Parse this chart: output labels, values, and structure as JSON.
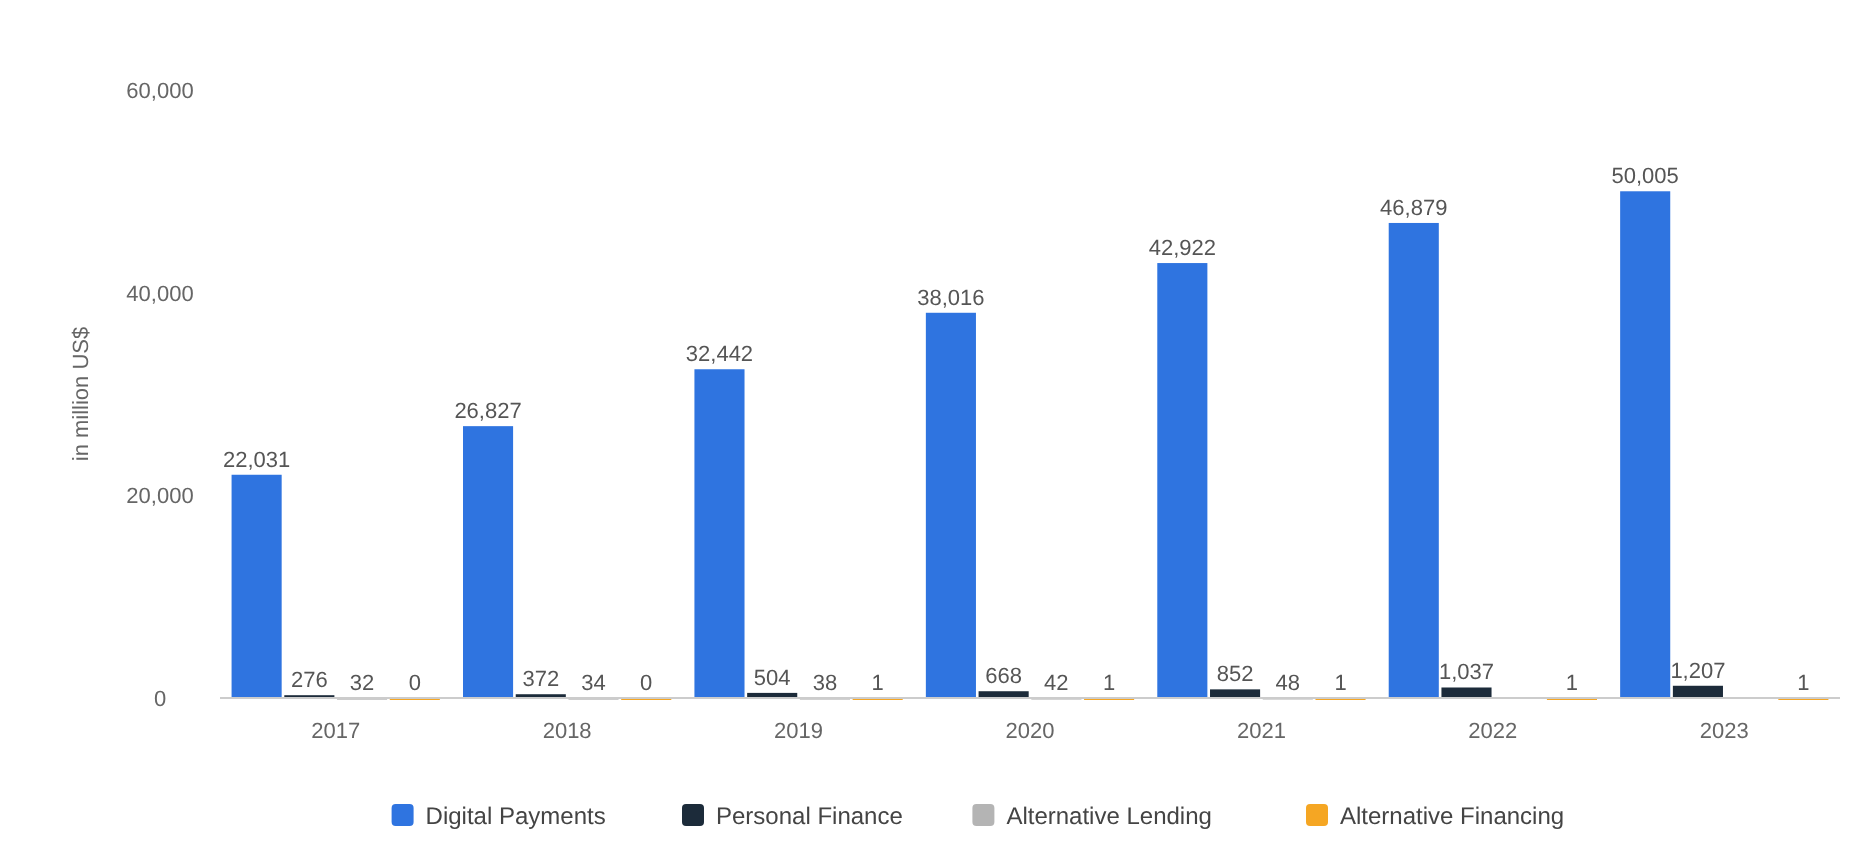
{
  "chart_data": {
    "type": "bar",
    "ylabel": "in million US$",
    "categories": [
      "2017",
      "2018",
      "2019",
      "2020",
      "2021",
      "2022",
      "2023"
    ],
    "series": [
      {
        "name": "Digital Payments",
        "color": "#2f74e0",
        "values": [
          22031,
          26827,
          32442,
          38016,
          42922,
          46879,
          50005
        ],
        "value_labels": [
          "22,031",
          "26,827",
          "32,442",
          "38,016",
          "42,922",
          "46,879",
          "50,005"
        ]
      },
      {
        "name": "Personal Finance",
        "color": "#1c2b3a",
        "values": [
          276,
          372,
          504,
          668,
          852,
          1037,
          1207
        ],
        "value_labels": [
          "276",
          "372",
          "504",
          "668",
          "852",
          "1,037",
          "1,207"
        ]
      },
      {
        "name": "Alternative Lending",
        "color": "#b4b4b4",
        "values": [
          32,
          34,
          38,
          42,
          48,
          null,
          null
        ],
        "value_labels": [
          "32",
          "34",
          "38",
          "42",
          "48",
          null,
          null
        ]
      },
      {
        "name": "Alternative Financing",
        "color": "#f5a623",
        "values": [
          0,
          0,
          1,
          1,
          1,
          1,
          1
        ],
        "value_labels": [
          "0",
          "0",
          "1",
          "1",
          "1",
          "1",
          "1"
        ]
      }
    ],
    "ylim": [
      0,
      60000
    ],
    "yticks": [
      {
        "value": 0,
        "label": "0"
      },
      {
        "value": 20000,
        "label": "20,000"
      },
      {
        "value": 40000,
        "label": "40,000"
      },
      {
        "value": 60000,
        "label": "60,000"
      }
    ],
    "legend": "bottom"
  }
}
